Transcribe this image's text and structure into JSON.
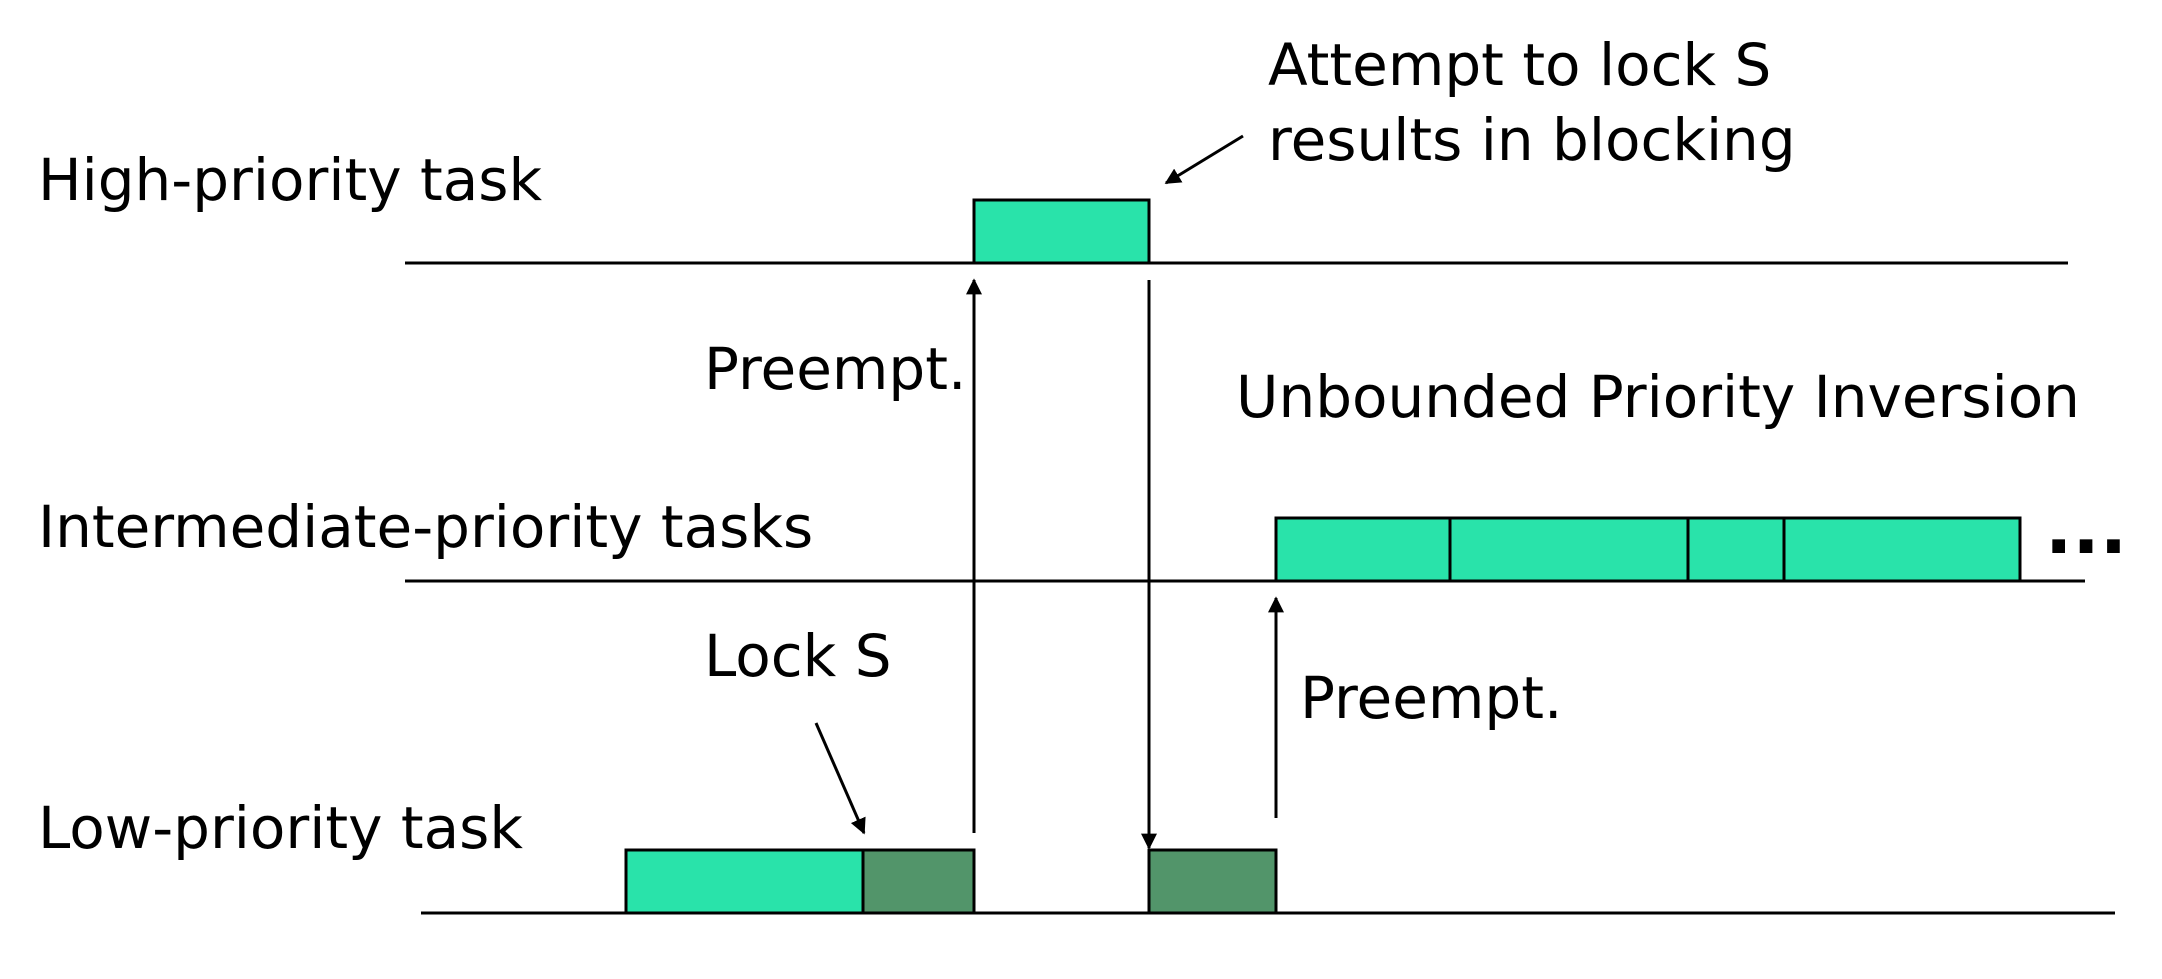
{
  "diagram": {
    "rows": {
      "high": {
        "label": "High-priority task"
      },
      "intermediate": {
        "label": "Intermediate-priority tasks"
      },
      "low": {
        "label": "Low-priority task"
      }
    },
    "annotations": {
      "attempt_line1": "Attempt to lock S",
      "attempt_line2": "results in blocking",
      "preempt_high": "Preempt.",
      "unbounded": "Unbounded Priority Inversion",
      "lock_s": "Lock S",
      "preempt_intermediate": "Preempt."
    },
    "continuation": "...",
    "colors": {
      "running": "#29e3aa",
      "critical_section": "#52956a",
      "line": "#000000"
    }
  }
}
